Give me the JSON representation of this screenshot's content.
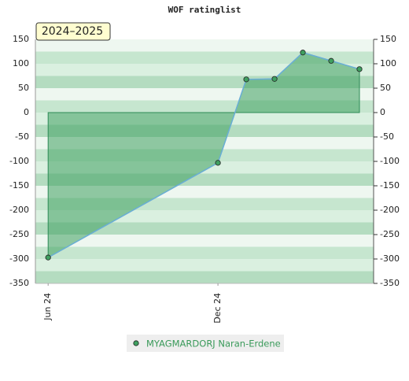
{
  "chart_data": {
    "type": "area",
    "title": "WOF ratinglist",
    "badge": "2024–2025",
    "x": [
      0,
      6,
      7,
      8,
      9,
      10,
      11
    ],
    "xlim": [
      -0.45,
      11.5
    ],
    "xticks": [
      {
        "value": 0,
        "label": "Jun 24"
      },
      {
        "value": 6,
        "label": "Dec 24"
      }
    ],
    "series": [
      {
        "name": "MYAGMARDORJ Naran-Erdene",
        "color": "#3fa060",
        "line_color": "#6aaed6",
        "values": [
          -297,
          -103,
          68,
          69,
          123,
          106,
          89
        ]
      }
    ],
    "ylim": [
      -350,
      150
    ],
    "yticks": [
      -350,
      -300,
      -250,
      -200,
      -150,
      -100,
      -50,
      0,
      50,
      100,
      150
    ],
    "grid": true
  }
}
